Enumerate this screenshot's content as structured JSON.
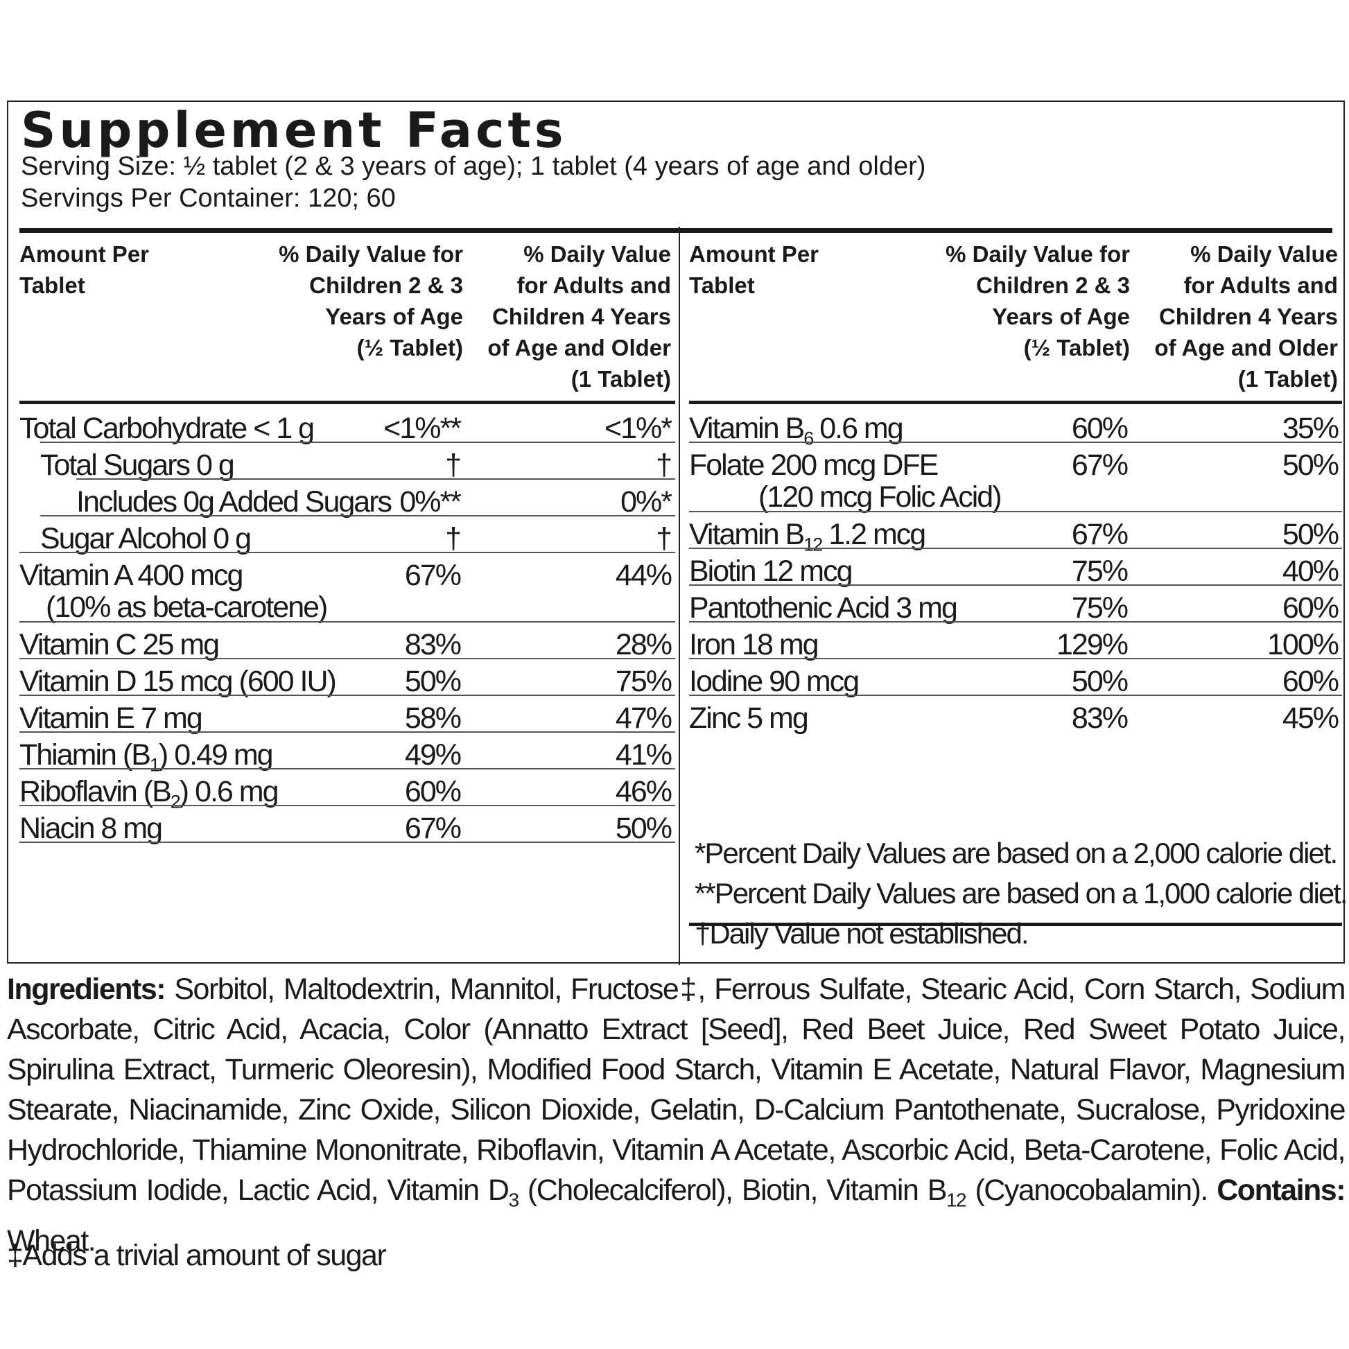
{
  "title": "Supplement Facts",
  "serving_size": "Serving Size: ½ tablet (2 & 3 years of age); 1 tablet (4 years of age and older)",
  "servings_per_container": "Servings Per Container: 120; 60",
  "headers": {
    "amount": "Amount Per Tablet",
    "children": "% Daily Value for Children 2 & 3 Years of Age (½ Tablet)",
    "adults": "% Daily Value for Adults and Children 4 Years of Age and Older (1 Tablet)"
  },
  "left_rows": [
    {
      "name": "Total Carbohydrate < 1 g",
      "v1": "<1%**",
      "v2": "<1%*"
    },
    {
      "name": "Total Sugars 0 g",
      "v1": "†",
      "v2": "†"
    },
    {
      "name": "Includes 0g Added Sugars",
      "v1": "0%**",
      "v2": "0%*"
    },
    {
      "name": "Sugar Alcohol 0 g",
      "v1": "†",
      "v2": "†"
    },
    {
      "name": "Vitamin A 400 mcg",
      "sub": "(10% as beta-carotene)",
      "v1": "67%",
      "v2": "44%"
    },
    {
      "name": "Vitamin C 25 mg",
      "v1": "83%",
      "v2": "28%"
    },
    {
      "name": "Vitamin D 15 mcg (600 IU)",
      "v1": "50%",
      "v2": "75%"
    },
    {
      "name": "Vitamin E 7 mg",
      "v1": "58%",
      "v2": "47%"
    },
    {
      "name": "Thiamin (B1) 0.49 mg",
      "v1": "49%",
      "v2": "41%"
    },
    {
      "name": "Riboflavin (B2) 0.6 mg",
      "v1": "60%",
      "v2": "46%"
    },
    {
      "name": "Niacin 8 mg",
      "v1": "67%",
      "v2": "50%"
    }
  ],
  "right_rows": [
    {
      "name": "Vitamin B6 0.6 mg",
      "v1": "60%",
      "v2": "35%"
    },
    {
      "name": "Folate 200 mcg DFE",
      "sub": "(120 mcg Folic Acid)",
      "v1": "67%",
      "v2": "50%"
    },
    {
      "name": "Vitamin B12 1.2 mcg",
      "v1": "67%",
      "v2": "50%"
    },
    {
      "name": "Biotin 12 mcg",
      "v1": "75%",
      "v2": "40%"
    },
    {
      "name": "Pantothenic Acid 3 mg",
      "v1": "75%",
      "v2": "60%"
    },
    {
      "name": "Iron 18 mg",
      "v1": "129%",
      "v2": "100%"
    },
    {
      "name": "Iodine 90 mcg",
      "v1": "50%",
      "v2": "60%"
    },
    {
      "name": "Zinc 5 mg",
      "v1": "83%",
      "v2": "45%"
    }
  ],
  "footnotes": [
    "*Percent Daily Values are based on a 2,000 calorie diet.",
    "**Percent Daily Values are based on a 1,000 calorie diet.",
    "†Daily Value not established."
  ],
  "ingredients_label": "Ingredients:",
  "ingredients_text": "Sorbitol, Maltodextrin, Mannitol, Fructose‡, Ferrous Sulfate, Stearic Acid, Corn Starch, Sodium Ascorbate, Citric Acid, Acacia, Color (Annatto Extract [Seed], Red Beet Juice, Red Sweet Potato Juice, Spirulina Extract, Turmeric Oleoresin), Modified Food Starch, Vitamin E Acetate, Natural Flavor, Magnesium Stearate, Niacinamide, Zinc Oxide, Silicon Dioxide, Gelatin, D-Calcium Pantothenate, Sucralose, Pyridoxine Hydrochloride, Thiamine Mononitrate, Riboflavin, Vitamin A Acetate, Ascorbic Acid, Beta-Carotene, Folic Acid, Potassium Iodide, Lactic Acid, Vitamin D3 (Cholecalciferol), Biotin, Vitamin B12 (Cyanocobalamin).",
  "contains_label": "Contains:",
  "contains_text": "Wheat.",
  "sugar_note": "‡Adds a trivial amount of sugar"
}
